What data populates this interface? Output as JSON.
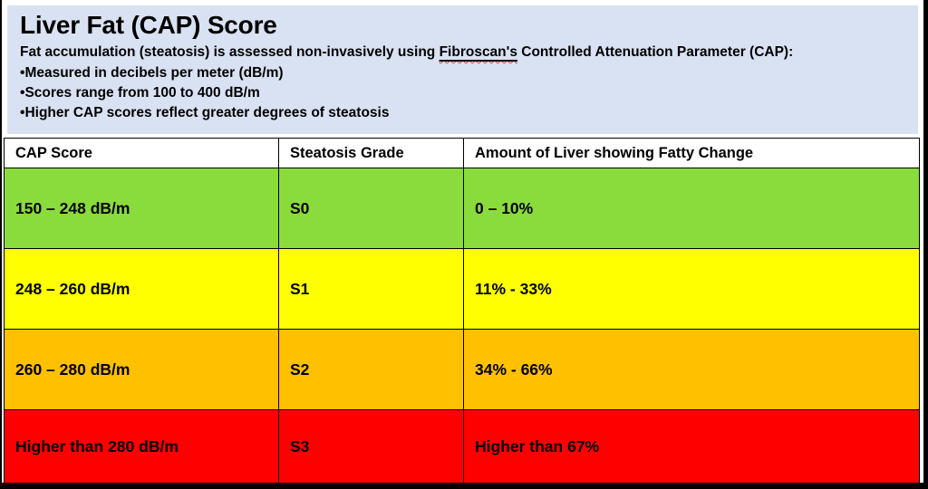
{
  "header": {
    "title": "Liver Fat (CAP) Score",
    "intro_prefix": "Fat accumulation (steatosis) is assessed non-invasively using ",
    "intro_underlined": "Fibroscan's",
    "intro_suffix": " Controlled Attenuation Parameter (CAP):",
    "bullet_char": "•",
    "bullets": [
      "Measured in decibels per meter (dB/m)",
      "Scores range from 100 to 400 dB/m",
      "Higher CAP scores reflect greater degrees of steatosis"
    ],
    "background_color": "#D9E2F3"
  },
  "table": {
    "columns": [
      "CAP Score",
      "Steatosis Grade",
      "Amount of Liver showing Fatty Change"
    ],
    "rows": [
      {
        "cap_score": "150 – 248 dB/m",
        "grade": "S0",
        "amount": "0 – 10%",
        "color": "#8ADB3C"
      },
      {
        "cap_score": "248 – 260 dB/m",
        "grade": "S1",
        "amount": "11% - 33%",
        "color": "#FFFF00"
      },
      {
        "cap_score": "260 – 280 dB/m",
        "grade": "S2",
        "amount": "34% - 66%",
        "color": "#FFC000"
      },
      {
        "cap_score": "Higher than 280 dB/m",
        "grade": "S3",
        "amount": "Higher than 67%",
        "color": "#FF0000"
      }
    ],
    "border_color": "#000000"
  }
}
